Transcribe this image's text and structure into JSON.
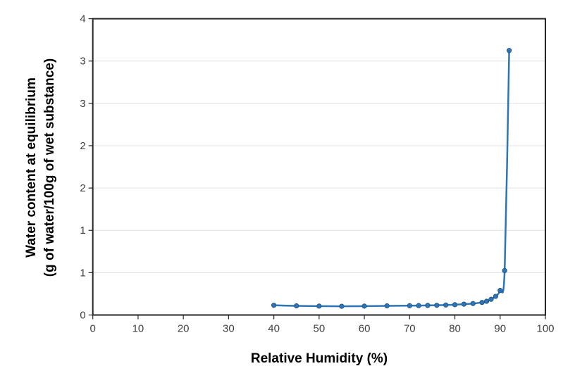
{
  "chart_data": {
    "type": "line",
    "title": "",
    "xlabel": "Relative Humidity (%)",
    "ylabel_line1": "Water content at equilibrium",
    "ylabel_line2": "(g of water/100g of wet substance)",
    "xlim": [
      0,
      100
    ],
    "ylim": [
      0,
      3.5
    ],
    "x_ticks": [
      0,
      10,
      20,
      30,
      40,
      50,
      60,
      70,
      80,
      90,
      100
    ],
    "x_tick_labels": [
      "0",
      "10",
      "20",
      "30",
      "40",
      "50",
      "60",
      "70",
      "80",
      "90",
      "100"
    ],
    "y_ticks": [
      0,
      0.5,
      1,
      1.5,
      2,
      2.5,
      3,
      3.5
    ],
    "y_tick_labels": [
      "0",
      "1",
      "1",
      "2",
      "2",
      "3",
      "3",
      "4"
    ],
    "grid": "horizontal",
    "legend": "none",
    "series": [
      {
        "name": "Water content",
        "color": "#2e75b6",
        "marker": "circle",
        "x": [
          40,
          45,
          50,
          55,
          60,
          65,
          70,
          72,
          74,
          76,
          78,
          80,
          82,
          84,
          86,
          87,
          88,
          89,
          90,
          91,
          92
        ],
        "values": [
          0.115,
          0.108,
          0.105,
          0.103,
          0.105,
          0.108,
          0.11,
          0.111,
          0.113,
          0.115,
          0.118,
          0.122,
          0.128,
          0.135,
          0.148,
          0.162,
          0.185,
          0.22,
          0.29,
          0.525,
          3.125
        ]
      }
    ]
  }
}
